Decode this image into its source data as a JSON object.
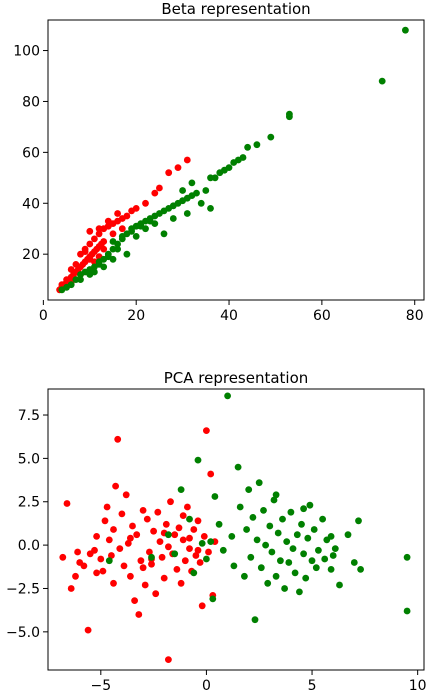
{
  "chart_data": [
    {
      "type": "scatter",
      "title": "Beta representation",
      "xlabel": "",
      "ylabel": "",
      "xlim": [
        1,
        82
      ],
      "ylim": [
        2,
        112
      ],
      "xticks": [
        0,
        20,
        40,
        60,
        80
      ],
      "yticks": [
        20,
        40,
        60,
        80,
        100
      ],
      "grid": false,
      "series": [
        {
          "color": "#ff0000",
          "points": [
            [
              3.5,
              6
            ],
            [
              4,
              7
            ],
            [
              4.5,
              8
            ],
            [
              5,
              9
            ],
            [
              5.5,
              10
            ],
            [
              6,
              11
            ],
            [
              6.5,
              12
            ],
            [
              7,
              13
            ],
            [
              7.5,
              14
            ],
            [
              8,
              15
            ],
            [
              8.5,
              16
            ],
            [
              9,
              17
            ],
            [
              9.5,
              18
            ],
            [
              10,
              19
            ],
            [
              10.5,
              20
            ],
            [
              11,
              21
            ],
            [
              11.5,
              22
            ],
            [
              12,
              23
            ],
            [
              12.5,
              24
            ],
            [
              13,
              25
            ],
            [
              9,
              22
            ],
            [
              10,
              24
            ],
            [
              11,
              26
            ],
            [
              12,
              28
            ],
            [
              13,
              30
            ],
            [
              14,
              31
            ],
            [
              15,
              32
            ],
            [
              16,
              33
            ],
            [
              17,
              34
            ],
            [
              18,
              35
            ],
            [
              19,
              37
            ],
            [
              20,
              38
            ],
            [
              22,
              40
            ],
            [
              24,
              44
            ],
            [
              25,
              46
            ],
            [
              27,
              52
            ],
            [
              29,
              54
            ],
            [
              31,
              57
            ],
            [
              8,
              20
            ],
            [
              9,
              21
            ],
            [
              10,
              18
            ],
            [
              11,
              17
            ],
            [
              12,
              19
            ],
            [
              6,
              14
            ],
            [
              7,
              16
            ],
            [
              5,
              10
            ],
            [
              4,
              8
            ],
            [
              10,
              29
            ],
            [
              12,
              30
            ],
            [
              14,
              33
            ],
            [
              16,
              36
            ],
            [
              13,
              22
            ],
            [
              15,
              28
            ],
            [
              17,
              30
            ],
            [
              8,
              12
            ],
            [
              6,
              9
            ]
          ]
        },
        {
          "color": "#008000",
          "points": [
            [
              4,
              6
            ],
            [
              5,
              7
            ],
            [
              6,
              8
            ],
            [
              7,
              10
            ],
            [
              8,
              12
            ],
            [
              9,
              13
            ],
            [
              10,
              14
            ],
            [
              11,
              15
            ],
            [
              12,
              16
            ],
            [
              13,
              18
            ],
            [
              14,
              20
            ],
            [
              15,
              22
            ],
            [
              16,
              24
            ],
            [
              17,
              26
            ],
            [
              18,
              28
            ],
            [
              19,
              30
            ],
            [
              20,
              31
            ],
            [
              21,
              32
            ],
            [
              22,
              33
            ],
            [
              23,
              34
            ],
            [
              24,
              35
            ],
            [
              25,
              36
            ],
            [
              26,
              37
            ],
            [
              27,
              38
            ],
            [
              28,
              39
            ],
            [
              29,
              40
            ],
            [
              30,
              41
            ],
            [
              31,
              42
            ],
            [
              32,
              43
            ],
            [
              33,
              44
            ],
            [
              35,
              45
            ],
            [
              36,
              38
            ],
            [
              37,
              50
            ],
            [
              38,
              52
            ],
            [
              39,
              53
            ],
            [
              40,
              54
            ],
            [
              41,
              56
            ],
            [
              42,
              57
            ],
            [
              43,
              58
            ],
            [
              44,
              62
            ],
            [
              46,
              63
            ],
            [
              49,
              66
            ],
            [
              53,
              74
            ],
            [
              53,
              75
            ],
            [
              73,
              88
            ],
            [
              78,
              108
            ],
            [
              15,
              25
            ],
            [
              17,
              27
            ],
            [
              19,
              29
            ],
            [
              21,
              31
            ],
            [
              23,
              33
            ],
            [
              12,
              17
            ],
            [
              14,
              19
            ],
            [
              16,
              22
            ],
            [
              10,
              12
            ],
            [
              8,
              10
            ],
            [
              11,
              13
            ],
            [
              13,
              15
            ],
            [
              15,
              18
            ],
            [
              18,
              20
            ],
            [
              20,
              27
            ],
            [
              22,
              30
            ],
            [
              24,
              32
            ],
            [
              26,
              28
            ],
            [
              28,
              34
            ],
            [
              31,
              36
            ],
            [
              34,
              40
            ],
            [
              30,
              45
            ],
            [
              32,
              48
            ],
            [
              36,
              50
            ]
          ]
        }
      ]
    },
    {
      "type": "scatter",
      "title": "PCA representation",
      "xlabel": "",
      "ylabel": "",
      "xlim": [
        -7.5,
        10.3
      ],
      "ylim": [
        -7.2,
        9.0
      ],
      "xticks": [
        -5,
        0,
        5,
        10
      ],
      "yticks": [
        -5.0,
        -2.5,
        0.0,
        2.5,
        5.0,
        7.5
      ],
      "xtick_labels": [
        "−5",
        "0",
        "5",
        "10"
      ],
      "ytick_labels": [
        "−5.0",
        "−2.5",
        "0.0",
        "2.5",
        "5.0",
        "7.5"
      ],
      "grid": false,
      "series": [
        {
          "color": "#ff0000",
          "points": [
            [
              -6.8,
              -0.7
            ],
            [
              -6.6,
              2.4
            ],
            [
              -6.4,
              -2.5
            ],
            [
              -6.2,
              -1.8
            ],
            [
              -6.0,
              -1.0
            ],
            [
              -5.8,
              -1.2
            ],
            [
              -5.6,
              -4.9
            ],
            [
              -5.5,
              -0.5
            ],
            [
              -5.3,
              -0.3
            ],
            [
              -5.2,
              0.5
            ],
            [
              -5.0,
              -0.8
            ],
            [
              -4.9,
              -1.5
            ],
            [
              -4.8,
              1.4
            ],
            [
              -4.7,
              2.2
            ],
            [
              -4.6,
              0.3
            ],
            [
              -4.5,
              -0.6
            ],
            [
              -4.4,
              0.9
            ],
            [
              -4.3,
              3.4
            ],
            [
              -4.2,
              6.1
            ],
            [
              -4.1,
              -0.2
            ],
            [
              -4.0,
              1.8
            ],
            [
              -3.9,
              -1.2
            ],
            [
              -3.8,
              2.9
            ],
            [
              -3.7,
              0.1
            ],
            [
              -3.6,
              -1.8
            ],
            [
              -3.5,
              1.1
            ],
            [
              -3.4,
              -3.2
            ],
            [
              -3.3,
              0.6
            ],
            [
              -3.2,
              -4.0
            ],
            [
              -3.1,
              -0.9
            ],
            [
              -3.0,
              2.0
            ],
            [
              -2.9,
              -2.3
            ],
            [
              -2.8,
              1.5
            ],
            [
              -2.7,
              -0.4
            ],
            [
              -2.6,
              -1.1
            ],
            [
              -2.5,
              0.8
            ],
            [
              -2.4,
              -2.8
            ],
            [
              -2.3,
              1.9
            ],
            [
              -2.2,
              0.2
            ],
            [
              -2.1,
              -0.7
            ],
            [
              -2.0,
              -1.9
            ],
            [
              -1.9,
              1.2
            ],
            [
              -1.8,
              -0.1
            ],
            [
              -1.7,
              2.5
            ],
            [
              -1.6,
              -0.5
            ],
            [
              -1.5,
              0.6
            ],
            [
              -1.4,
              -1.4
            ],
            [
              -1.3,
              1.0
            ],
            [
              -1.2,
              -2.2
            ],
            [
              -1.1,
              0.3
            ],
            [
              -1.0,
              -0.9
            ],
            [
              -0.9,
              2.2
            ],
            [
              -0.8,
              -0.2
            ],
            [
              -0.7,
              -1.5
            ],
            [
              -0.6,
              0.9
            ],
            [
              -0.5,
              -0.6
            ],
            [
              -0.4,
              1.4
            ],
            [
              -0.3,
              -1.0
            ],
            [
              -0.2,
              -3.5
            ],
            [
              -0.1,
              0.5
            ],
            [
              0.0,
              6.6
            ],
            [
              0.1,
              -0.4
            ],
            [
              0.2,
              4.1
            ],
            [
              0.3,
              -2.9
            ],
            [
              0.4,
              0.2
            ],
            [
              -1.8,
              -6.6
            ],
            [
              -0.4,
              -0.3
            ],
            [
              -2.6,
              -0.8
            ],
            [
              -3.6,
              0.4
            ],
            [
              -5.2,
              -1.6
            ],
            [
              -6.1,
              -0.4
            ],
            [
              -4.4,
              -2.2
            ],
            [
              -2.0,
              0.7
            ],
            [
              -1.1,
              1.7
            ],
            [
              -0.8,
              0.4
            ],
            [
              -3.0,
              -1.3
            ]
          ]
        },
        {
          "color": "#008000",
          "points": [
            [
              -4.6,
              -0.9
            ],
            [
              -2.6,
              -0.7
            ],
            [
              -1.8,
              0.6
            ],
            [
              -1.5,
              -0.5
            ],
            [
              -1.2,
              3.2
            ],
            [
              -0.8,
              1.5
            ],
            [
              -0.6,
              -1.6
            ],
            [
              -0.4,
              4.9
            ],
            [
              -0.2,
              0.1
            ],
            [
              0.0,
              -0.8
            ],
            [
              0.2,
              0.2
            ],
            [
              0.3,
              -3.1
            ],
            [
              0.4,
              2.8
            ],
            [
              0.6,
              1.2
            ],
            [
              0.8,
              -0.3
            ],
            [
              1.0,
              8.6
            ],
            [
              1.2,
              0.5
            ],
            [
              1.3,
              -1.2
            ],
            [
              1.5,
              4.5
            ],
            [
              1.6,
              2.2
            ],
            [
              1.8,
              -1.8
            ],
            [
              1.9,
              0.9
            ],
            [
              2.0,
              3.2
            ],
            [
              2.1,
              -0.7
            ],
            [
              2.2,
              1.6
            ],
            [
              2.3,
              -4.3
            ],
            [
              2.4,
              0.3
            ],
            [
              2.5,
              3.6
            ],
            [
              2.6,
              -1.3
            ],
            [
              2.7,
              2.0
            ],
            [
              2.8,
              0.0
            ],
            [
              2.9,
              -2.2
            ],
            [
              3.0,
              1.1
            ],
            [
              3.1,
              -0.4
            ],
            [
              3.2,
              2.6
            ],
            [
              3.3,
              -1.8
            ],
            [
              3.4,
              0.7
            ],
            [
              3.5,
              -0.9
            ],
            [
              3.6,
              1.5
            ],
            [
              3.7,
              -2.5
            ],
            [
              3.8,
              0.2
            ],
            [
              3.9,
              -1.0
            ],
            [
              4.0,
              1.9
            ],
            [
              4.1,
              -0.2
            ],
            [
              4.2,
              -1.6
            ],
            [
              4.3,
              0.6
            ],
            [
              4.4,
              -2.7
            ],
            [
              4.5,
              1.2
            ],
            [
              4.6,
              -0.5
            ],
            [
              4.7,
              -1.9
            ],
            [
              4.8,
              0.4
            ],
            [
              4.9,
              2.3
            ],
            [
              5.0,
              -0.9
            ],
            [
              5.1,
              0.9
            ],
            [
              5.2,
              -1.3
            ],
            [
              5.3,
              -0.3
            ],
            [
              5.5,
              1.5
            ],
            [
              5.6,
              -0.8
            ],
            [
              5.7,
              0.3
            ],
            [
              5.9,
              -1.4
            ],
            [
              6.1,
              -0.2
            ],
            [
              6.3,
              -2.3
            ],
            [
              6.7,
              0.6
            ],
            [
              7.0,
              -1.0
            ],
            [
              7.2,
              1.4
            ],
            [
              7.3,
              -1.4
            ],
            [
              9.5,
              -0.7
            ],
            [
              9.5,
              -3.8
            ],
            [
              3.3,
              2.9
            ],
            [
              4.6,
              2.1
            ],
            [
              5.9,
              0.5
            ],
            [
              6.0,
              -0.6
            ]
          ]
        }
      ]
    }
  ]
}
